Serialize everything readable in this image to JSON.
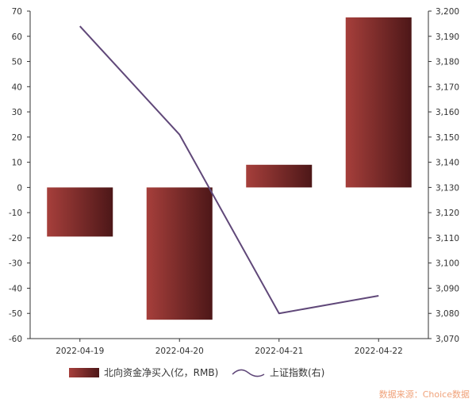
{
  "chart_data": {
    "type": "bar",
    "categories": [
      "2022-04-19",
      "2022-04-20",
      "2022-04-21",
      "2022-04-22"
    ],
    "series": [
      {
        "name": "北向资金净买入(亿，RMB)",
        "type": "bar",
        "axis": "left",
        "values": [
          -19.5,
          -52.5,
          9,
          67.5
        ]
      },
      {
        "name": "上证指数(右)",
        "type": "line",
        "axis": "right",
        "values": [
          3194,
          3151,
          3080,
          3087
        ]
      }
    ],
    "y_left": {
      "lim": [
        -60,
        70
      ],
      "ticks": [
        "70",
        "60",
        "50",
        "40",
        "30",
        "20",
        "10",
        "0",
        "-10",
        "-20",
        "-30",
        "-40",
        "-50",
        "-60"
      ]
    },
    "y_right": {
      "lim": [
        3070,
        3200
      ],
      "ticks": [
        "3,200",
        "3,190",
        "3,180",
        "3,170",
        "3,160",
        "3,150",
        "3,140",
        "3,130",
        "3,120",
        "3,110",
        "3,100",
        "3,090",
        "3,080",
        "3,070"
      ]
    },
    "legend": {
      "position": "bottom"
    },
    "grid": false,
    "source": "数据来源：Choice数据",
    "colors": {
      "bar_light": "#a63f3b",
      "bar_dark": "#4d1718",
      "line": "#604879",
      "axis": "#333333"
    }
  }
}
